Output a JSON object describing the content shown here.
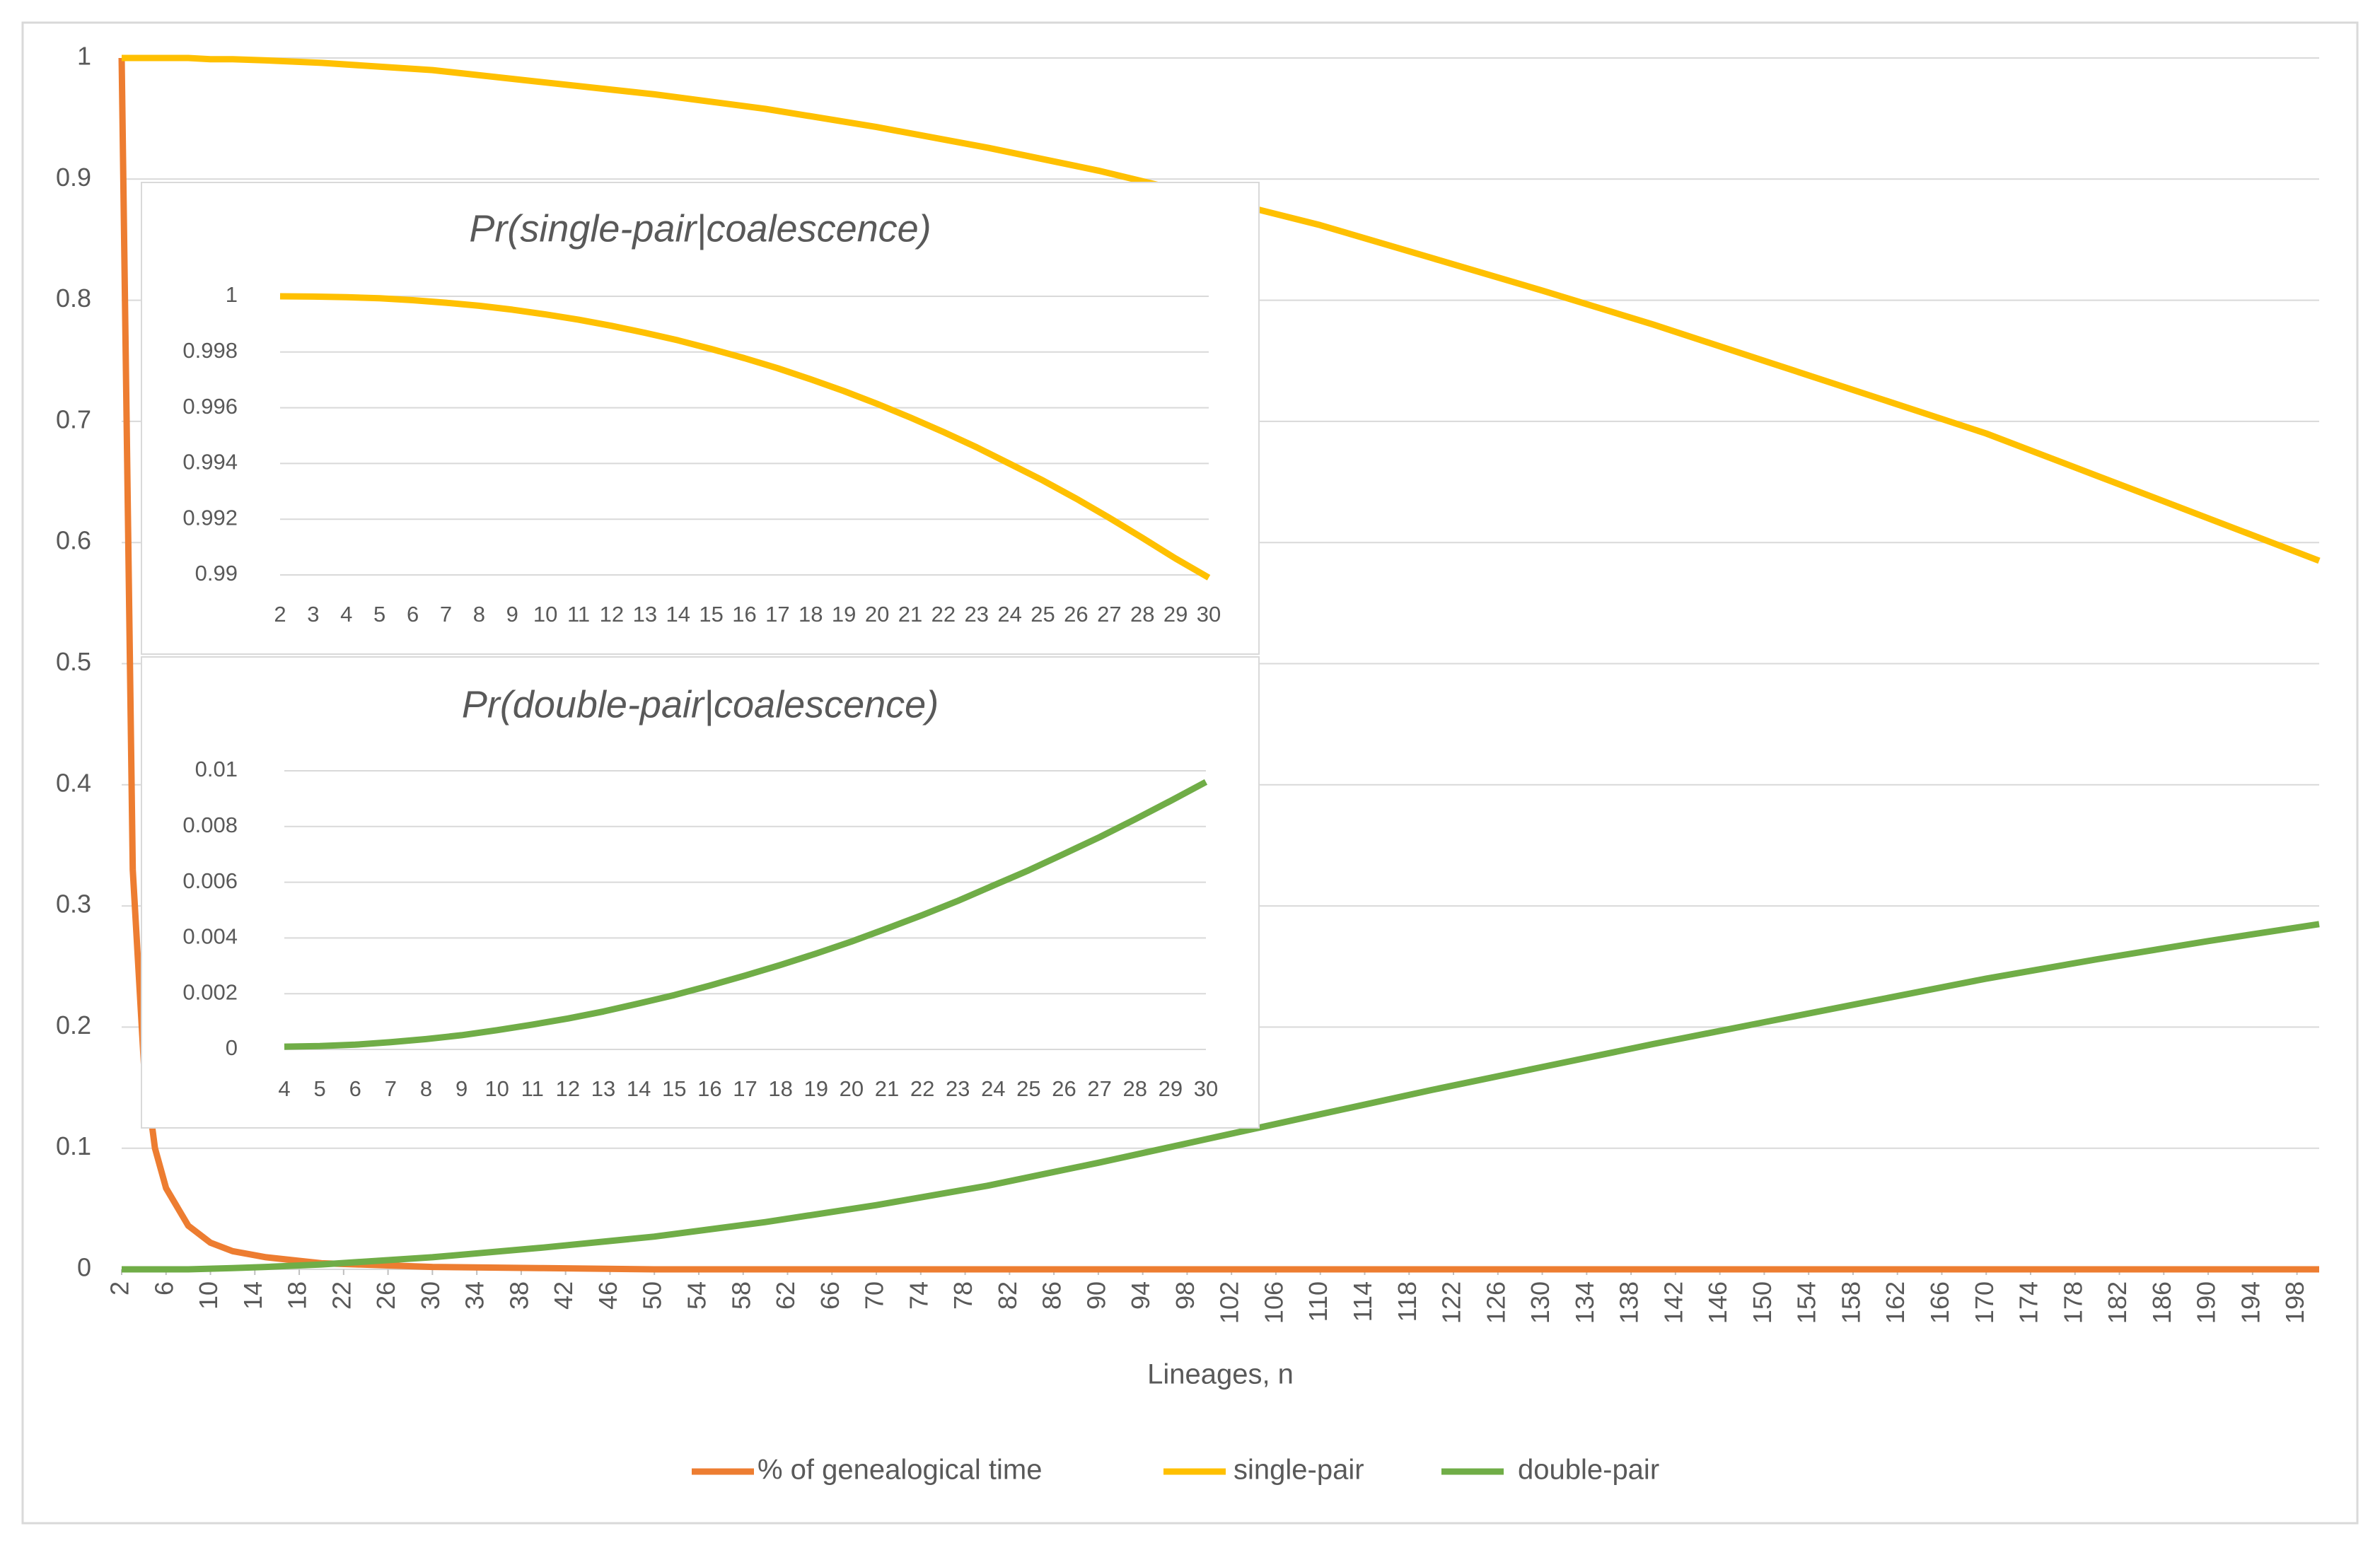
{
  "chart_data": [
    {
      "type": "line",
      "x": [
        2,
        3,
        4,
        5,
        6,
        8,
        10,
        12,
        15,
        20,
        30,
        40,
        50,
        60,
        70,
        80,
        90,
        100,
        110,
        120,
        130,
        140,
        150,
        160,
        170,
        180,
        190,
        200
      ],
      "xlim": [
        2,
        200
      ],
      "xticks": [
        2,
        6,
        10,
        14,
        18,
        22,
        26,
        30,
        34,
        38,
        42,
        46,
        50,
        54,
        58,
        62,
        66,
        70,
        74,
        78,
        82,
        86,
        90,
        94,
        98,
        102,
        106,
        110,
        114,
        118,
        122,
        126,
        130,
        134,
        138,
        142,
        146,
        150,
        154,
        158,
        162,
        166,
        170,
        174,
        178,
        182,
        186,
        190,
        194,
        198
      ],
      "ylim": [
        0,
        1
      ],
      "yticks": [
        0,
        0.1,
        0.2,
        0.3,
        0.4,
        0.5,
        0.6,
        0.7,
        0.8,
        0.9,
        1
      ],
      "x_label": "Lineages, n",
      "grid": true,
      "legend": "bottom",
      "series": [
        {
          "name": "% of genealogical time",
          "color": "#ED7D31",
          "values": [
            1,
            0.33,
            0.17,
            0.1,
            0.067,
            0.036,
            0.022,
            0.015,
            0.01,
            0.005,
            0.002,
            0.001,
            0,
            0,
            0,
            0,
            0,
            0,
            0,
            0,
            0,
            0,
            0,
            0,
            0,
            0,
            0,
            0
          ]
        },
        {
          "name": "single-pair",
          "color": "#FFC000",
          "values": [
            1,
            1,
            1,
            1,
            1,
            1,
            0.999,
            0.999,
            0.998,
            0.996,
            0.99,
            0.98,
            0.97,
            0.958,
            0.943,
            0.926,
            0.907,
            0.885,
            0.862,
            0.835,
            0.808,
            0.78,
            0.75,
            0.72,
            0.69,
            0.655,
            0.62,
            0.585
          ]
        },
        {
          "name": "double-pair",
          "color": "#70AD47",
          "values": [
            0,
            0,
            0,
            0,
            0,
            0,
            0.0005,
            0.001,
            0.002,
            0.004,
            0.01,
            0.018,
            0.027,
            0.039,
            0.053,
            0.069,
            0.088,
            0.108,
            0.128,
            0.148,
            0.167,
            0.186,
            0.204,
            0.222,
            0.24,
            0.256,
            0.271,
            0.285
          ]
        }
      ]
    },
    {
      "type": "line",
      "title": "Pr(single-pair|coalescence)",
      "categories": [
        "2",
        "3",
        "4",
        "5",
        "6",
        "7",
        "8",
        "9",
        "10",
        "11",
        "12",
        "13",
        "14",
        "15",
        "16",
        "17",
        "18",
        "19",
        "20",
        "21",
        "22",
        "23",
        "24",
        "25",
        "26",
        "27",
        "28",
        "29",
        "30"
      ],
      "values": [
        1,
        0.99999,
        0.99997,
        0.99993,
        0.99986,
        0.99977,
        0.99966,
        0.99952,
        0.99935,
        0.99916,
        0.99894,
        0.99869,
        0.99842,
        0.99811,
        0.99778,
        0.99742,
        0.99702,
        0.9966,
        0.99614,
        0.99565,
        0.99513,
        0.99458,
        0.99399,
        0.99339,
        0.99274,
        0.99205,
        0.99133,
        0.99059,
        0.9899
      ],
      "color": "#FFC000",
      "ylim": [
        0.99,
        1
      ],
      "yticks": [
        0.99,
        0.992,
        0.994,
        0.996,
        0.998,
        1
      ],
      "grid": true
    },
    {
      "type": "line",
      "title": "Pr(double-pair|coalescence)",
      "categories": [
        "4",
        "5",
        "6",
        "7",
        "8",
        "9",
        "10",
        "11",
        "12",
        "13",
        "14",
        "15",
        "16",
        "17",
        "18",
        "19",
        "20",
        "21",
        "22",
        "23",
        "24",
        "25",
        "26",
        "27",
        "28",
        "29",
        "30"
      ],
      "values": [
        0.0001,
        0.00012,
        0.00017,
        0.00026,
        0.00037,
        0.00051,
        0.00069,
        0.00089,
        0.00111,
        0.00136,
        0.00165,
        0.00195,
        0.00229,
        0.00265,
        0.00303,
        0.00344,
        0.00387,
        0.00434,
        0.00482,
        0.00533,
        0.00588,
        0.00643,
        0.00702,
        0.00762,
        0.00826,
        0.00892,
        0.0096
      ],
      "color": "#70AD47",
      "ylim": [
        0,
        0.01
      ],
      "yticks": [
        0,
        0.002,
        0.004,
        0.006,
        0.008,
        0.01
      ],
      "grid": true
    }
  ]
}
